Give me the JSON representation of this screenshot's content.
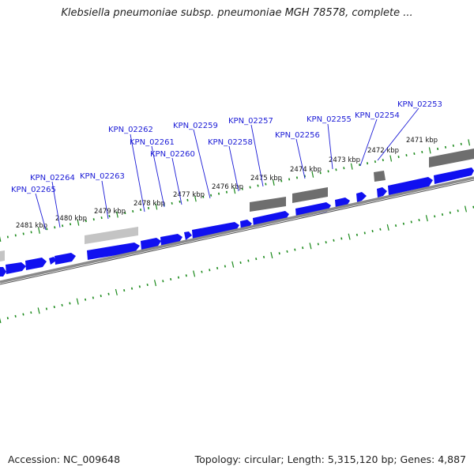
{
  "title": "Klebsiella pneumoniae subsp. pneumoniae MGH 78578, complete ...",
  "footer": {
    "accession": "Accession: NC_009648",
    "summary": "Topology: circular; Length: 5,315,120 bp; Genes: 4,887"
  },
  "colors": {
    "gene_forward": "#1010f0",
    "gene_gray": "#6a6a6a",
    "gene_lightgray": "#c4c4c4",
    "backbone": "#8a8a8a",
    "tick": "#1b8a1b",
    "label_text": "#1a1ad6"
  },
  "scale": {
    "unit": "kbp",
    "ticks": [
      {
        "label": "2481 kbp"
      },
      {
        "label": "2480 kbp"
      },
      {
        "label": "2479 kbp"
      },
      {
        "label": "2478 kbp"
      },
      {
        "label": "2477 kbp"
      },
      {
        "label": "2476 kbp"
      },
      {
        "label": "2475 kbp"
      },
      {
        "label": "2474 kbp"
      },
      {
        "label": "2473 kbp"
      },
      {
        "label": "2472 kbp"
      },
      {
        "label": "2471 kbp"
      }
    ]
  },
  "gene_labels": [
    {
      "name": "KPN_02265"
    },
    {
      "name": "KPN_02264"
    },
    {
      "name": "KPN_02263"
    },
    {
      "name": "KPN_02262"
    },
    {
      "name": "KPN_02261"
    },
    {
      "name": "KPN_02260"
    },
    {
      "name": "KPN_02259"
    },
    {
      "name": "KPN_02258"
    },
    {
      "name": "KPN_02257"
    },
    {
      "name": "KPN_02256"
    },
    {
      "name": "KPN_02255"
    },
    {
      "name": "KPN_02254"
    },
    {
      "name": "KPN_02253"
    }
  ]
}
